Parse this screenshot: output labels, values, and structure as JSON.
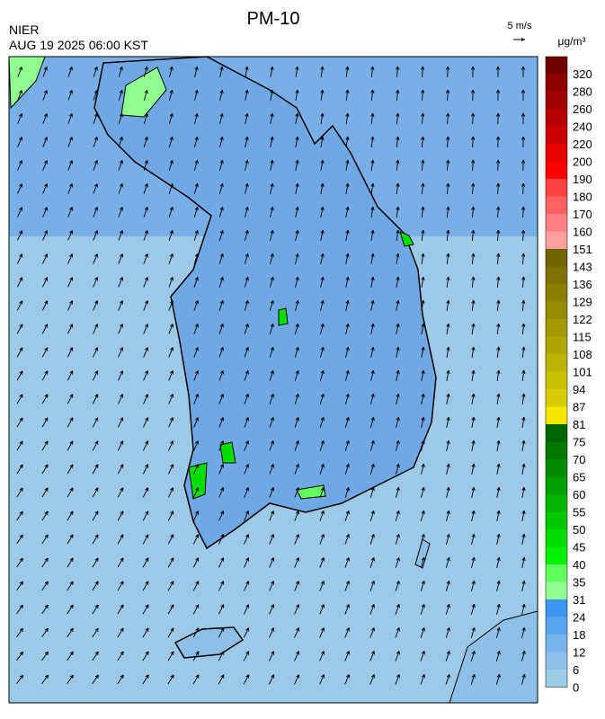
{
  "header": {
    "title": "PM-10",
    "source": "NIER",
    "timestamp": "AUG 19 2025 06:00 KST",
    "wind_scale": "5 m/s"
  },
  "legend": {
    "unit": "μg/m³",
    "labels": [
      "320",
      "280",
      "260",
      "240",
      "220",
      "200",
      "190",
      "180",
      "170",
      "160",
      "151",
      "143",
      "136",
      "129",
      "122",
      "115",
      "108",
      "101",
      "94",
      "87",
      "81",
      "75",
      "70",
      "65",
      "60",
      "55",
      "50",
      "45",
      "40",
      "35",
      "31",
      "24",
      "18",
      "12",
      "6",
      "0"
    ],
    "colors": [
      "#700000",
      "#8c0000",
      "#a00000",
      "#b40000",
      "#cc0000",
      "#e60000",
      "#ff0000",
      "#ff4040",
      "#ff6060",
      "#ff8080",
      "#ffa0a0",
      "#6e6400",
      "#7d7200",
      "#8a8000",
      "#968c00",
      "#a39900",
      "#b0a600",
      "#bdb300",
      "#cbc000",
      "#d8cd00",
      "#f5e600",
      "#006400",
      "#007800",
      "#008c00",
      "#00a000",
      "#00b400",
      "#00c800",
      "#00dc00",
      "#00f000",
      "#60ff60",
      "#90ff90",
      "#3c96f0",
      "#5aa5f0",
      "#78b4ec",
      "#8cc0e8",
      "#a0cce6"
    ]
  }
}
